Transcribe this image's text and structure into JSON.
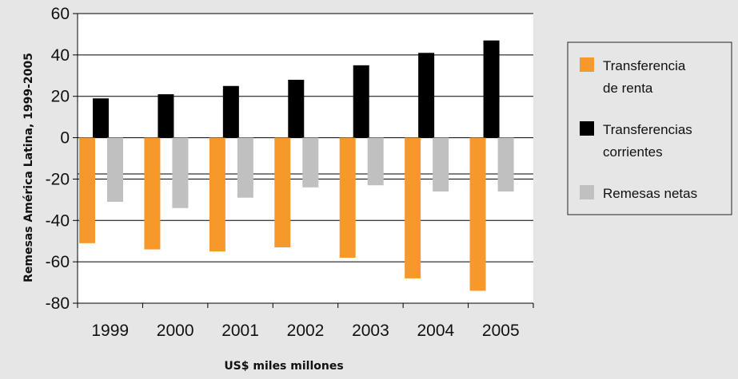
{
  "chart_data": {
    "type": "bar",
    "categories": [
      "1999",
      "2000",
      "2001",
      "2002",
      "2003",
      "2004",
      "2005"
    ],
    "series": [
      {
        "name": "Transferencia de renta",
        "color": "#f7982a",
        "values": [
          -51,
          -54,
          -55,
          -53,
          -58,
          -68,
          -74
        ]
      },
      {
        "name": "Transferencias corrientes",
        "color": "#000000",
        "values": [
          19,
          21,
          25,
          28,
          35,
          41,
          47
        ]
      },
      {
        "name": "Remesas netas",
        "color": "#c0c0c0",
        "values": [
          -31,
          -34,
          -29,
          -24,
          -23,
          -26,
          -26
        ]
      }
    ],
    "legend_labels": [
      [
        "Transferencia",
        "de renta"
      ],
      [
        "Transferencias",
        "corrientes"
      ],
      [
        "Remesas netas"
      ]
    ],
    "ylim": [
      -80,
      60
    ],
    "yticks": [
      -80,
      -60,
      -40,
      -20,
      0,
      20,
      40,
      60
    ],
    "ylabel": "Remesas América Latina, 1999-2005",
    "xlabel": "US$ miles millones",
    "grid": true,
    "legend_position": "right",
    "background_color": "#e6e6e6",
    "plot_background": "#ffffff"
  }
}
